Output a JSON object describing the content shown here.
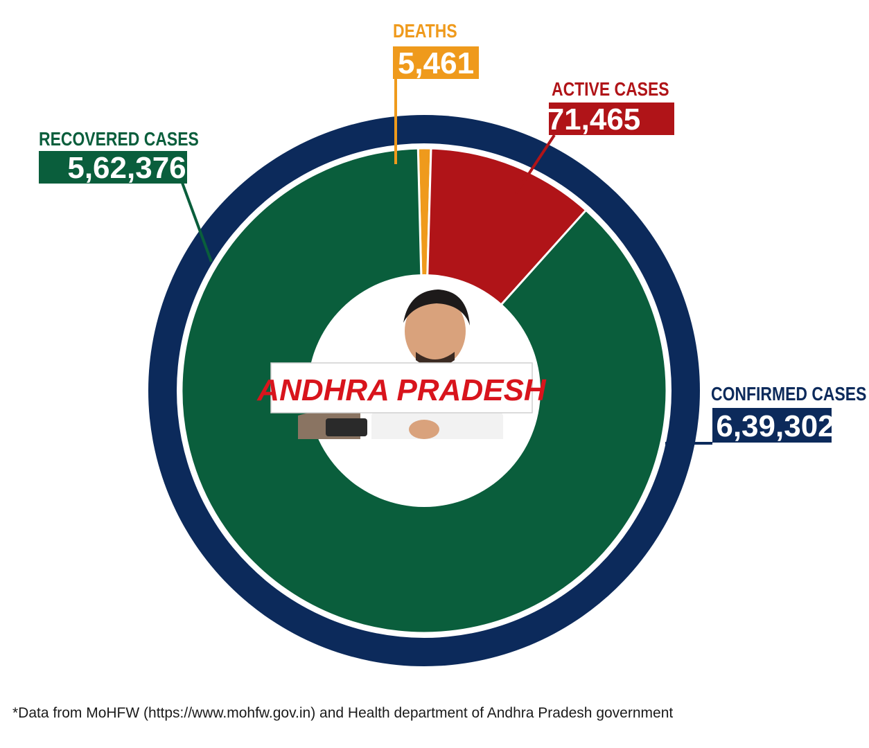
{
  "colors": {
    "confirmed": "#0c2a5b",
    "recovered": "#0a5e3c",
    "active": "#b01418",
    "deaths": "#ef9a1c",
    "center_label_text": "#d8141c"
  },
  "chart_data": {
    "type": "pie",
    "subtype": "nested-donut",
    "center_label": "ANDHRA PRADESH",
    "center_image": "portrait-photo",
    "outer_ring": {
      "name": "CONFIRMED CASES",
      "value": 639302,
      "value_label": "6,39,302"
    },
    "inner_ring": [
      {
        "name": "DEATHS",
        "value": 5461,
        "value_label": "5,461",
        "color_key": "deaths"
      },
      {
        "name": "ACTIVE CASES",
        "value": 71465,
        "value_label": "71,465",
        "color_key": "active"
      },
      {
        "name": "RECOVERED CASES",
        "value": 562376,
        "value_label": "5,62,376",
        "color_key": "recovered"
      }
    ]
  },
  "footnote": "*Data from MoHFW (https://www.mohfw.gov.in) and Health department of Andhra Pradesh government"
}
